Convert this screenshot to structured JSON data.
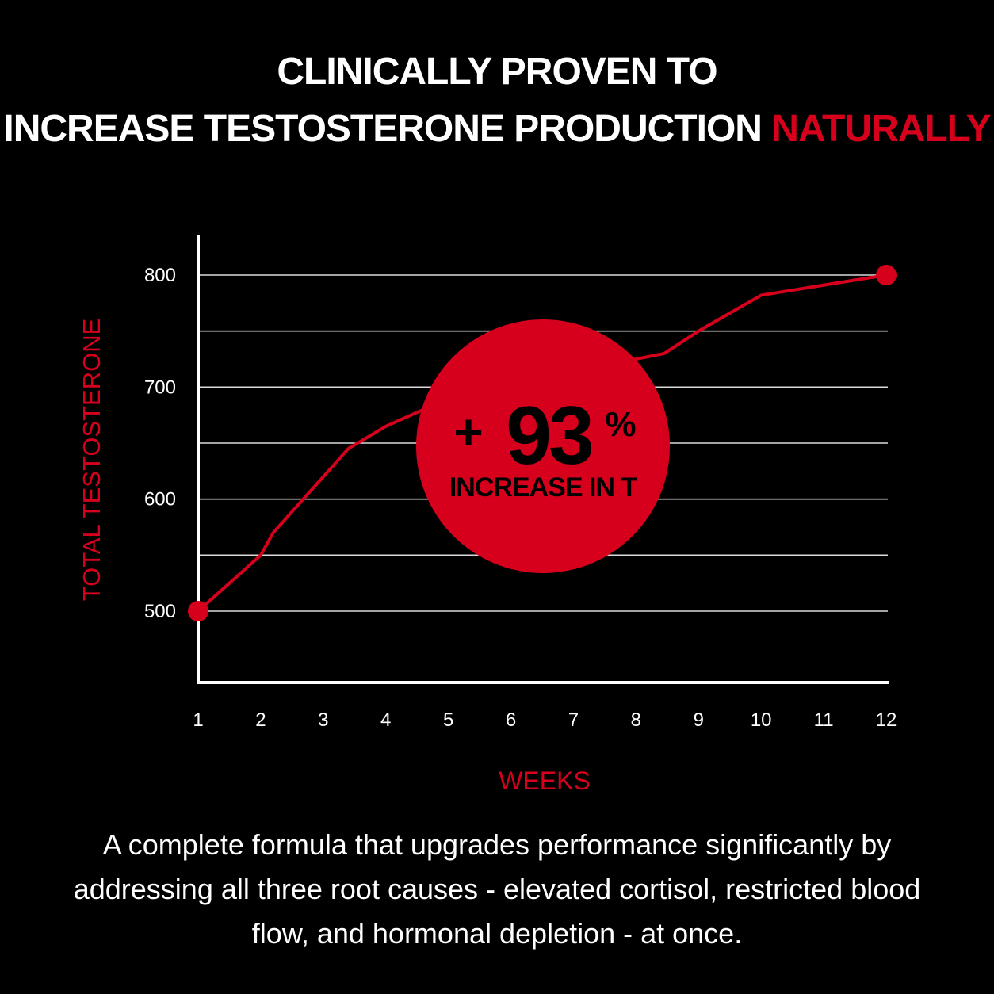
{
  "headline": {
    "line1": "CLINICALLY PROVEN TO",
    "line2": "INCREASE TESTOSTERONE PRODUCTION",
    "line2_accent": "NATURALLY"
  },
  "badge": {
    "prefix": "+",
    "value": "93",
    "unit": "%",
    "label": "INCREASE IN T"
  },
  "body_text": "A complete formula that upgrades performance significantly by addressing all three root causes - elevated cortisol, restricted blood flow, and hormonal depletion - at once.",
  "colors": {
    "accent": "#d6001c",
    "background": "#000000",
    "text": "#ffffff"
  },
  "chart_data": {
    "type": "line",
    "xlabel": "WEEKS",
    "ylabel": "TOTAL TESTOSTERONE",
    "x_ticks": [
      "1",
      "2",
      "3",
      "4",
      "5",
      "6",
      "7",
      "8",
      "9",
      "10",
      "11",
      "12"
    ],
    "y_ticks": [
      "500",
      "600",
      "700",
      "800"
    ],
    "xlim": [
      1,
      12
    ],
    "ylim": [
      435,
      840
    ],
    "grid": true,
    "series": [
      {
        "x": [
          1,
          2,
          2.2,
          3,
          3.4,
          4,
          5,
          5.9,
          7,
          8,
          8.45,
          9,
          10,
          12
        ],
        "y": [
          500,
          550,
          570,
          620,
          645,
          665,
          690,
          705,
          712,
          725,
          730,
          750,
          782,
          800
        ],
        "markers_at_ends": true
      }
    ]
  }
}
